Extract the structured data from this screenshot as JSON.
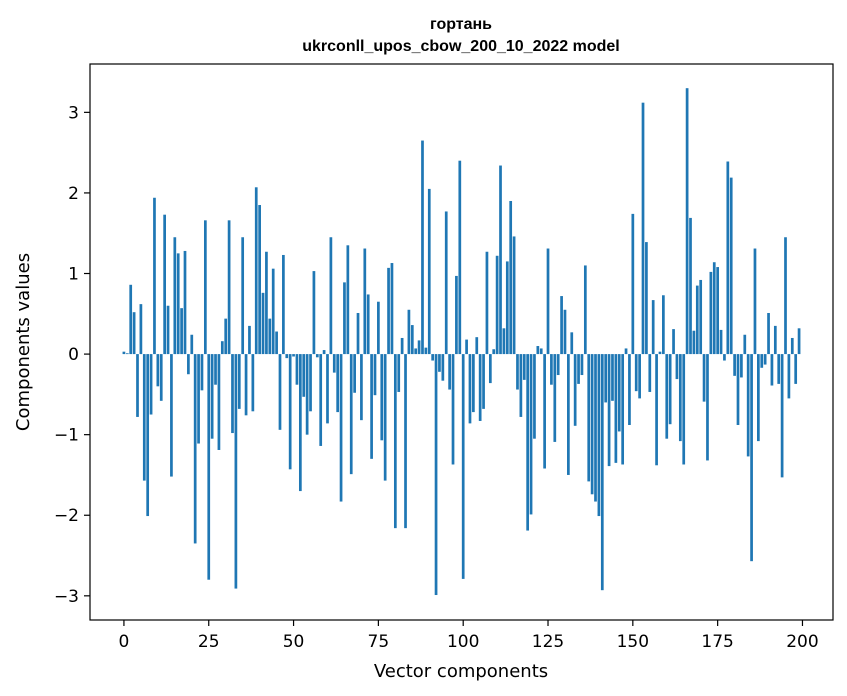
{
  "chart_data": {
    "type": "bar",
    "title": [
      "гортань",
      "ukrconll_upos_cbow_200_10_2022 model"
    ],
    "xlabel": "Vector components",
    "ylabel": "Components values",
    "xlim": [
      -10,
      209
    ],
    "ylim": [
      -3.3,
      3.6
    ],
    "xticks": [
      0,
      25,
      50,
      75,
      100,
      125,
      150,
      175,
      200
    ],
    "yticks": [
      -3,
      -2,
      -1,
      0,
      1,
      2,
      3
    ],
    "xtick_labels": [
      "0",
      "25",
      "50",
      "75",
      "100",
      "125",
      "150",
      "175",
      "200"
    ],
    "ytick_labels": [
      "−3",
      "−2",
      "−1",
      "0",
      "1",
      "2",
      "3"
    ],
    "grid": false,
    "bar_color": "#1f77b4",
    "values": [
      0.03,
      0.01,
      0.86,
      0.52,
      -0.78,
      0.62,
      -1.57,
      -2.01,
      -0.75,
      1.94,
      -0.4,
      -0.58,
      1.73,
      0.6,
      -1.52,
      1.45,
      1.25,
      0.57,
      1.28,
      -0.25,
      0.24,
      -2.35,
      -1.11,
      -0.45,
      1.66,
      -2.8,
      -1.05,
      -0.38,
      -1.19,
      0.16,
      0.44,
      1.66,
      -0.98,
      -2.91,
      -0.68,
      1.45,
      -0.76,
      0.35,
      -0.71,
      2.07,
      1.85,
      0.76,
      1.27,
      0.44,
      1.06,
      0.28,
      -0.94,
      1.23,
      -0.05,
      -1.43,
      -0.03,
      -0.38,
      -1.7,
      -0.53,
      -1.0,
      -0.71,
      1.03,
      -0.04,
      -1.14,
      0.05,
      -0.86,
      1.45,
      -0.23,
      -0.72,
      -1.83,
      0.89,
      1.35,
      -1.49,
      -0.48,
      0.51,
      -0.82,
      1.31,
      0.74,
      -1.3,
      -0.51,
      0.65,
      -1.07,
      -1.57,
      1.07,
      1.13,
      -2.16,
      -0.47,
      0.2,
      -2.16,
      0.55,
      0.36,
      0.07,
      0.17,
      2.65,
      0.08,
      2.05,
      -0.08,
      -2.99,
      -0.22,
      -0.33,
      1.77,
      -0.44,
      -1.37,
      0.97,
      2.4,
      -2.79,
      0.18,
      -0.86,
      -0.72,
      0.21,
      -0.83,
      -0.68,
      1.27,
      -0.36,
      0.06,
      1.22,
      2.34,
      0.32,
      1.15,
      1.9,
      1.46,
      -0.44,
      -0.78,
      -0.32,
      -2.19,
      -1.99,
      -1.05,
      0.1,
      0.07,
      -1.42,
      1.31,
      -0.38,
      -1.09,
      -0.26,
      0.72,
      0.55,
      -1.5,
      0.27,
      -0.89,
      -0.37,
      -0.26,
      1.1,
      -1.58,
      -1.74,
      -1.83,
      -2.01,
      -2.93,
      -0.6,
      -1.39,
      -0.58,
      -1.35,
      -0.96,
      -1.37,
      0.07,
      -0.88,
      1.74,
      -0.46,
      -0.55,
      3.12,
      1.39,
      -0.47,
      0.67,
      -1.38,
      0.03,
      0.73,
      -1.05,
      -0.87,
      0.31,
      -0.31,
      -1.08,
      -1.37,
      3.3,
      1.69,
      0.29,
      0.85,
      0.92,
      -0.59,
      -1.32,
      1.02,
      1.14,
      1.08,
      0.3,
      -0.08,
      2.39,
      2.19,
      -0.27,
      -0.88,
      -0.29,
      0.24,
      -1.27,
      -2.57,
      1.31,
      -1.08,
      -0.17,
      -0.13,
      0.51,
      -0.39,
      0.35,
      -0.37,
      -1.53,
      1.45,
      -0.55,
      0.2,
      -0.37,
      0.32
    ]
  }
}
